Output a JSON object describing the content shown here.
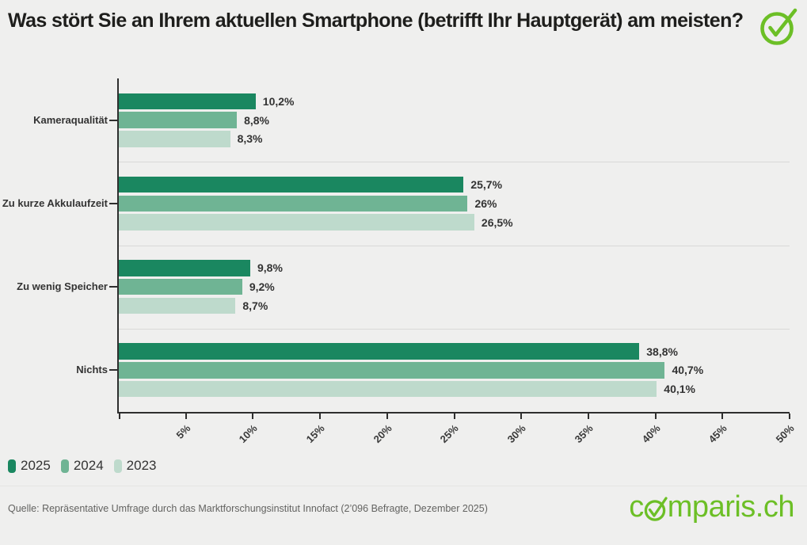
{
  "header": {
    "title": "Was stört Sie an Ihrem aktuellen Smartphone (betrifft Ihr Hauptgerät) am meisten?"
  },
  "chart_data": {
    "type": "bar",
    "orientation": "horizontal",
    "title": "Was stört Sie an Ihrem aktuellen Smartphone (betrifft Ihr Hauptgerät) am meisten?",
    "categories": [
      "Kameraqualität",
      "Zu kurze Akkulaufzeit",
      "Zu wenig Speicher",
      "Nichts"
    ],
    "series": [
      {
        "name": "2025",
        "color": "#1a8760",
        "values": [
          10.2,
          25.7,
          9.8,
          38.8
        ],
        "labels": [
          "10,2%",
          "25,7%",
          "9,8%",
          "38,8%"
        ]
      },
      {
        "name": "2024",
        "color": "#6fb494",
        "values": [
          8.8,
          26.0,
          9.2,
          40.7
        ],
        "labels": [
          "8,8%",
          "26%",
          "9,2%",
          "40,7%"
        ]
      },
      {
        "name": "2023",
        "color": "#bedacc",
        "values": [
          8.3,
          26.5,
          8.7,
          40.1
        ],
        "labels": [
          "8,3%",
          "26,5%",
          "8,7%",
          "40,1%"
        ]
      }
    ],
    "xlim": [
      0,
      50
    ],
    "x_tick_step": 5,
    "x_tick_labels": [
      "5%",
      "10%",
      "15%",
      "20%",
      "25%",
      "30%",
      "35%",
      "40%",
      "45%",
      "50%"
    ],
    "grid": "horizontal category separators only",
    "legend_position": "bottom-left",
    "value_format": "comma-decimal percent"
  },
  "footer": {
    "source": "Quelle: Repräsentative Umfrage durch das Marktforschungsinstitut Innofact (2’096 Befragte, Dezember 2025)"
  },
  "branding": {
    "logo_prefix": "c",
    "logo_suffix": "mparis.ch",
    "logo_color": "#6cbf26",
    "badge_icon": "check-circle"
  }
}
